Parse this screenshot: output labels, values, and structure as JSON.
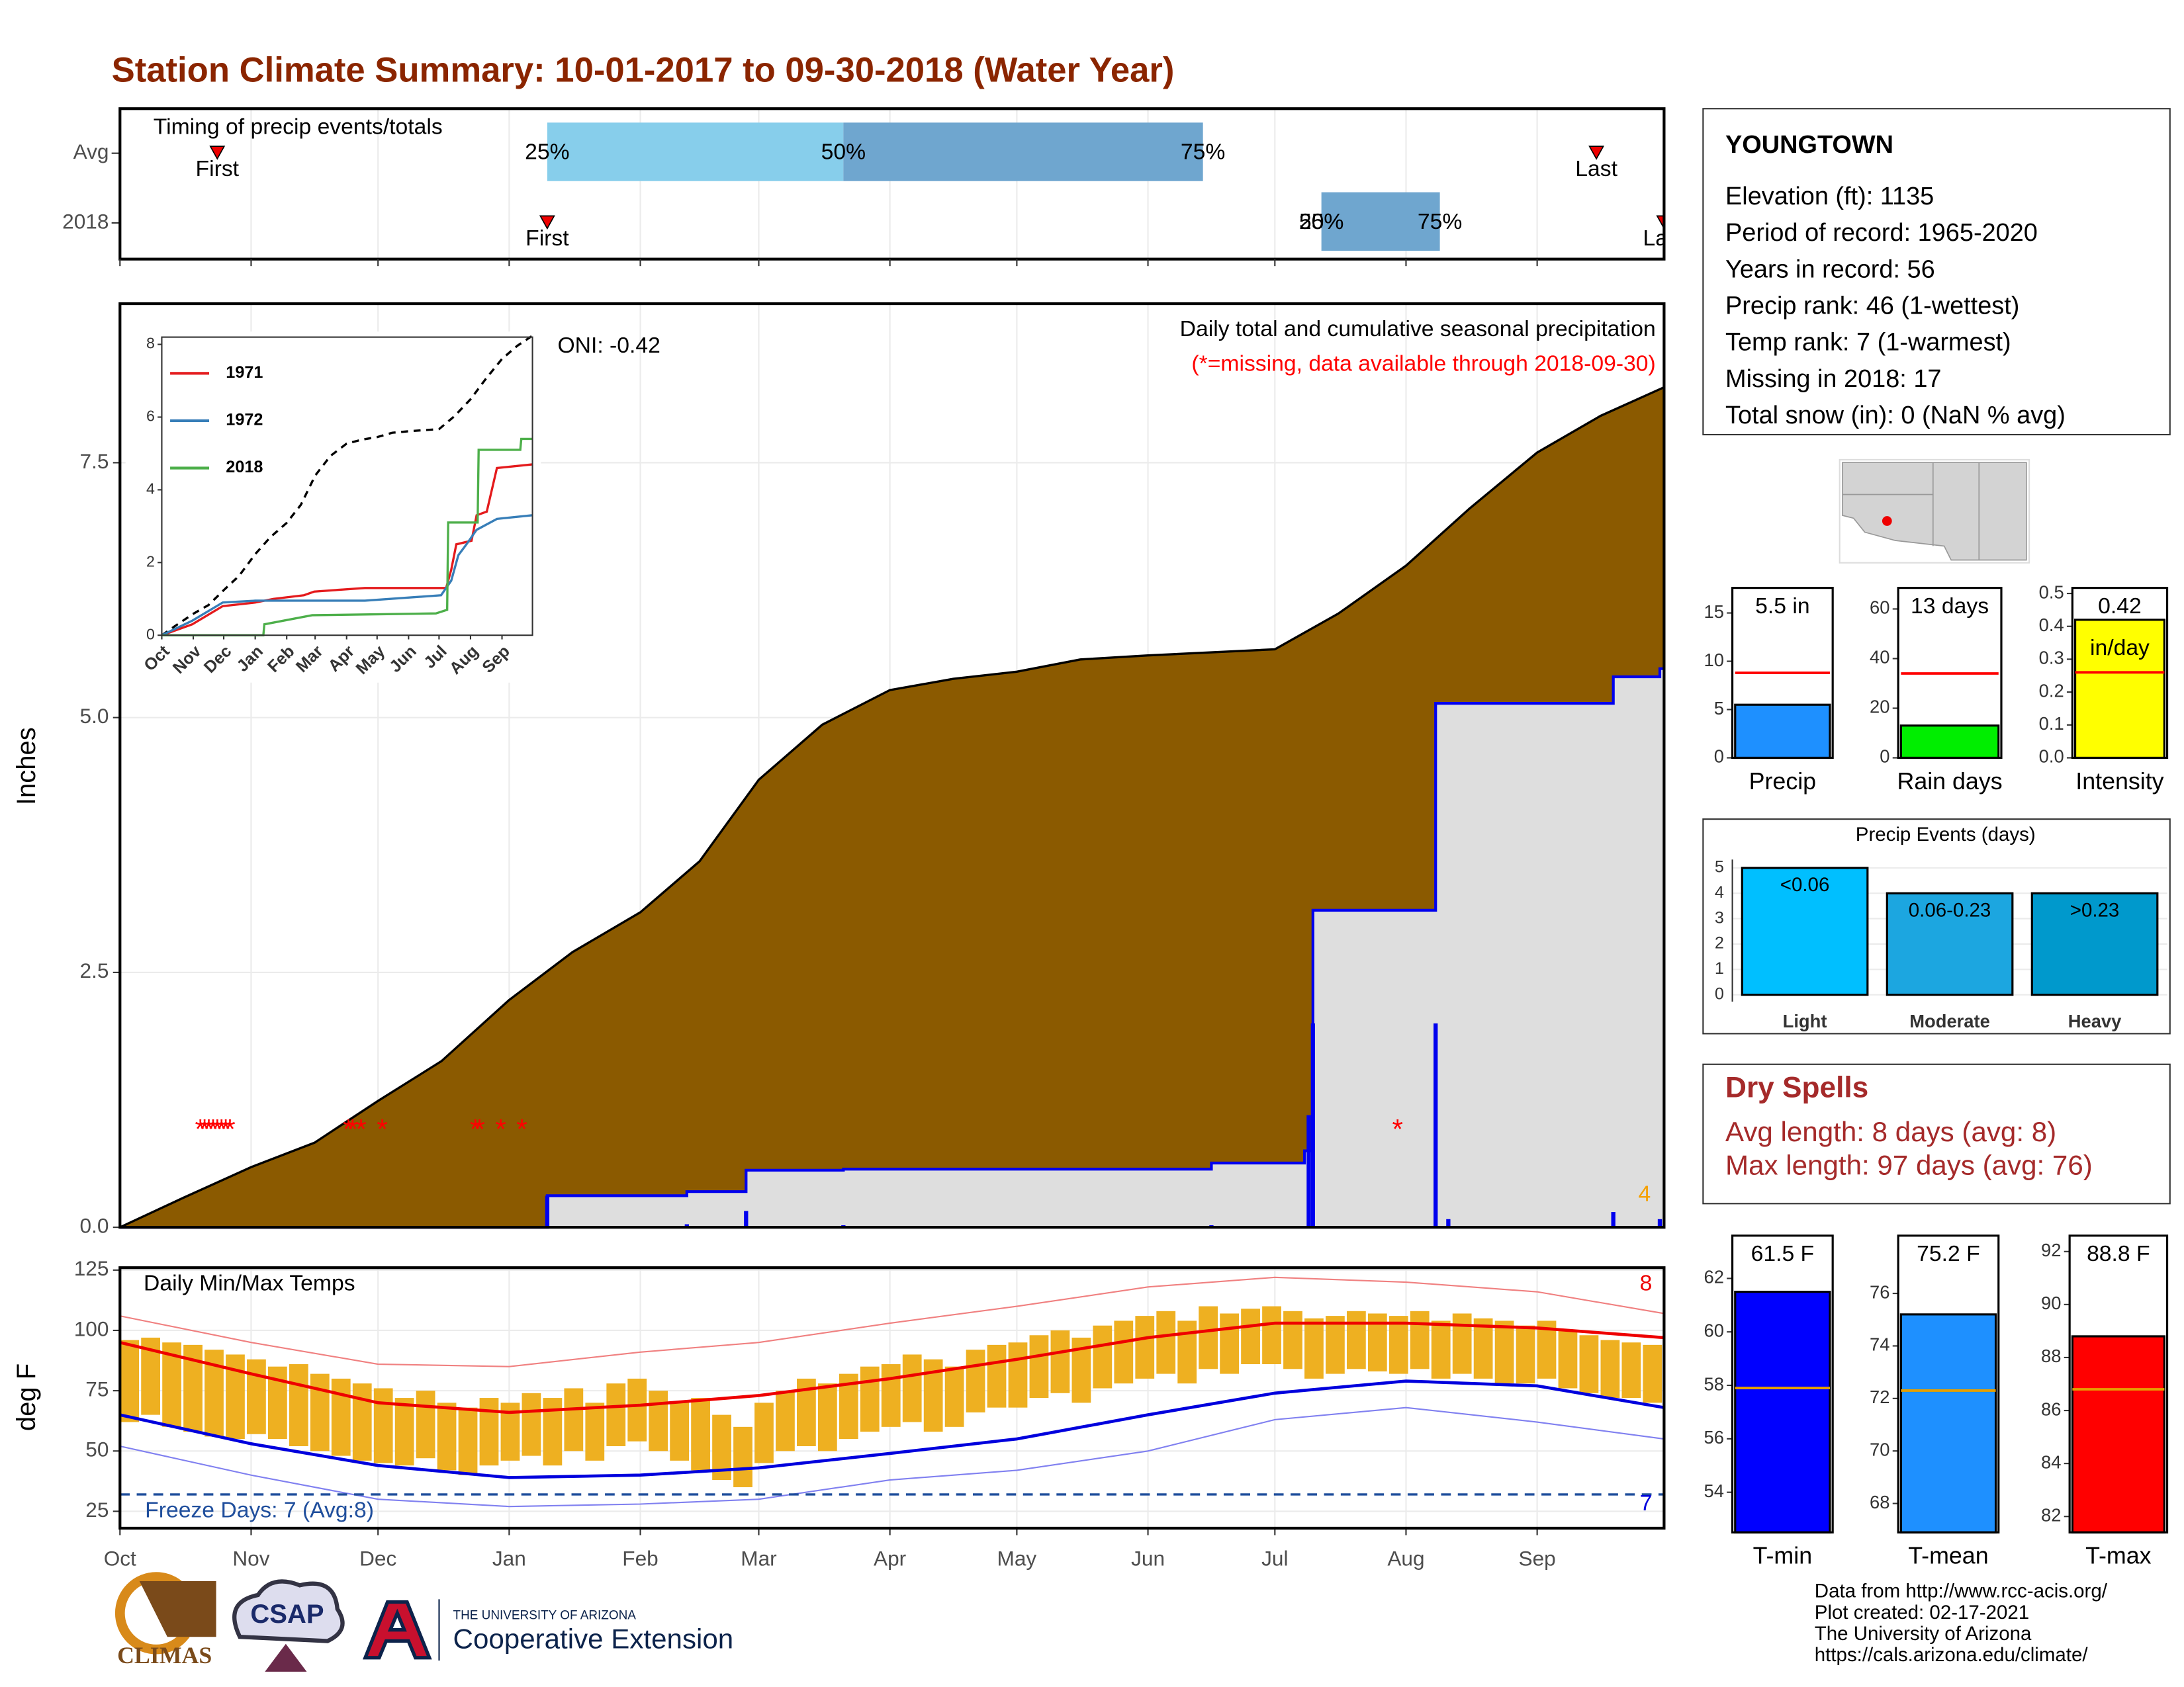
{
  "title": "Station Climate Summary: 10-01-2017 to 09-30-2018 (Water Year)",
  "chart_data": [
    {
      "type": "timing",
      "title": "Timing of precip events/totals",
      "xlim": [
        0,
        365
      ],
      "labels": [
        "First",
        "25%",
        "50%",
        "75%",
        "Last"
      ],
      "colors": [
        "#87ceeb",
        "#6fa6cf"
      ],
      "rows": [
        {
          "name": "Avg",
          "first": 23,
          "q25": 101,
          "q50": 171,
          "q75": 256,
          "last": 349
        },
        {
          "name": "2018",
          "first": 101,
          "q25": 284,
          "q50": 284,
          "q75": 312,
          "last": 365
        }
      ]
    },
    {
      "type": "cumulative",
      "ylabel": "Inches",
      "title": "Daily total and cumulative seasonal precipitation",
      "subtitle": "(*=missing, data available through 2018-09-30)",
      "oni": "ONI: -0.42",
      "xlim": [
        0,
        365
      ],
      "ylim": [
        0,
        9.06
      ],
      "yticks": [
        {
          "value": 0,
          "label": "0.0"
        },
        2.5,
        {
          "value": 5,
          "label": "5.0"
        },
        7.5
      ],
      "grid": true,
      "average": {
        "color": "#8b5a00",
        "x": [
          0,
          15,
          31,
          46,
          61,
          76,
          92,
          107,
          123,
          137,
          151,
          166,
          182,
          197,
          212,
          227,
          243,
          258,
          273,
          288,
          304,
          319,
          335,
          350,
          365
        ],
        "values": [
          0,
          0.29,
          0.59,
          0.83,
          1.24,
          1.63,
          2.23,
          2.7,
          3.09,
          3.59,
          4.39,
          4.93,
          5.27,
          5.38,
          5.45,
          5.57,
          5.61,
          5.64,
          5.67,
          6.02,
          6.49,
          7.05,
          7.6,
          7.96,
          8.24
        ]
      },
      "season": {
        "color": "#0000ee",
        "x": [
          0,
          101,
          134,
          148,
          171,
          258,
          280,
          282,
          311,
          353,
          364
        ],
        "values": [
          0,
          0.31,
          0.35,
          0.56,
          0.57,
          0.63,
          0.75,
          3.11,
          5.14,
          5.4,
          5.48
        ]
      },
      "daily": {
        "color": "#0000ee",
        "x": [
          101,
          134,
          148,
          171,
          258,
          281,
          282,
          311,
          314,
          353,
          364
        ],
        "values": [
          0.31,
          0.03,
          0.16,
          0.02,
          0.02,
          1.1,
          2.0,
          2.0,
          0.08,
          0.15,
          0.08
        ]
      },
      "missing_symbol": "*",
      "missing_color": "#ff0000",
      "missing_days": [
        19,
        20,
        21,
        22,
        23,
        24,
        25,
        26,
        54,
        55,
        57,
        62,
        84,
        85,
        90,
        95,
        302
      ],
      "corner_note": "4"
    },
    {
      "type": "line",
      "xlim": [
        0,
        365
      ],
      "ylim": [
        0,
        8.2
      ],
      "yticks": [
        0,
        2,
        4,
        6,
        8
      ],
      "xticks": [
        {
          "value": 0,
          "label": "Oct"
        },
        {
          "value": 31,
          "label": "Nov"
        },
        {
          "value": 61,
          "label": "Dec"
        },
        {
          "value": 92,
          "label": "Jan"
        },
        {
          "value": 123,
          "label": "Feb"
        },
        {
          "value": 151,
          "label": "Mar"
        },
        {
          "value": 182,
          "label": "Apr"
        },
        {
          "value": 212,
          "label": "May"
        },
        {
          "value": 243,
          "label": "Jun"
        },
        {
          "value": 273,
          "label": "Jul"
        },
        {
          "value": 304,
          "label": "Aug"
        },
        {
          "value": 335,
          "label": "Sep"
        }
      ],
      "series": [
        {
          "name": "1971",
          "color": "#e41a1c",
          "x": [
            0,
            30,
            60,
            92,
            110,
            140,
            150,
            200,
            280,
            285,
            290,
            305,
            310,
            320,
            330,
            365
          ],
          "values": [
            0,
            0.3,
            0.8,
            0.9,
            1.0,
            1.1,
            1.2,
            1.3,
            1.3,
            1.8,
            2.5,
            2.6,
            3.3,
            3.4,
            4.6,
            4.7
          ]
        },
        {
          "name": "1972",
          "color": "#377eb8",
          "x": [
            0,
            30,
            60,
            92,
            200,
            275,
            285,
            292,
            300,
            310,
            330,
            365
          ],
          "values": [
            0,
            0.4,
            0.9,
            0.95,
            0.95,
            1.1,
            1.5,
            2.2,
            2.5,
            2.9,
            3.2,
            3.3
          ]
        },
        {
          "name": "2018",
          "color": "#4daf4a",
          "x": [
            0,
            100,
            101,
            148,
            270,
            281,
            282,
            311,
            312,
            353,
            354,
            365
          ],
          "values": [
            0,
            0,
            0.3,
            0.55,
            0.6,
            0.7,
            3.1,
            3.1,
            5.1,
            5.1,
            5.4,
            5.4
          ]
        }
      ]
    },
    {
      "type": "temps",
      "title": "Daily Min/Max Temps",
      "ylabel": "deg F",
      "freeze_text": "Freeze Days: 7 (Avg:8)",
      "note_high": "8",
      "note_low": "7",
      "freeze_line": 32,
      "xlim": [
        0,
        365
      ],
      "ylim": [
        18,
        126
      ],
      "yticks": [
        25,
        50,
        75,
        100,
        125
      ],
      "xticks": [
        {
          "value": 0,
          "label": "Oct"
        },
        {
          "value": 31,
          "label": "Nov"
        },
        {
          "value": 61,
          "label": "Dec"
        },
        {
          "value": 92,
          "label": "Jan"
        },
        {
          "value": 123,
          "label": "Feb"
        },
        {
          "value": 151,
          "label": "Mar"
        },
        {
          "value": 182,
          "label": "Apr"
        },
        {
          "value": 212,
          "label": "May"
        },
        {
          "value": 243,
          "label": "Jun"
        },
        {
          "value": 273,
          "label": "Jul"
        },
        {
          "value": 304,
          "label": "Aug"
        },
        {
          "value": 335,
          "label": "Sep"
        }
      ],
      "bar_color": "#eeb021",
      "x": [
        0,
        5,
        10,
        15,
        20,
        25,
        30,
        35,
        40,
        45,
        50,
        55,
        60,
        65,
        70,
        75,
        80,
        85,
        90,
        95,
        100,
        105,
        110,
        115,
        120,
        125,
        130,
        135,
        140,
        145,
        150,
        155,
        160,
        165,
        170,
        175,
        180,
        185,
        190,
        195,
        200,
        205,
        210,
        215,
        220,
        225,
        230,
        235,
        240,
        245,
        250,
        255,
        260,
        265,
        270,
        275,
        280,
        285,
        290,
        295,
        300,
        305,
        310,
        315,
        320,
        325,
        330,
        335,
        340,
        345,
        350,
        355,
        360
      ],
      "max": [
        96,
        97,
        95,
        94,
        92,
        90,
        88,
        85,
        86,
        82,
        80,
        78,
        76,
        72,
        75,
        70,
        68,
        72,
        70,
        74,
        72,
        76,
        70,
        78,
        80,
        75,
        70,
        72,
        65,
        60,
        70,
        75,
        80,
        78,
        82,
        85,
        86,
        90,
        88,
        85,
        92,
        94,
        95,
        98,
        100,
        97,
        102,
        104,
        106,
        108,
        104,
        110,
        107,
        109,
        110,
        108,
        105,
        106,
        108,
        107,
        106,
        108,
        104,
        107,
        105,
        104,
        102,
        104,
        100,
        98,
        96,
        95,
        94
      ],
      "min": [
        62,
        65,
        60,
        58,
        56,
        55,
        57,
        55,
        52,
        50,
        48,
        46,
        45,
        44,
        47,
        42,
        40,
        44,
        46,
        48,
        44,
        50,
        46,
        52,
        54,
        50,
        46,
        42,
        38,
        35,
        45,
        50,
        52,
        50,
        55,
        58,
        60,
        62,
        58,
        60,
        66,
        68,
        68,
        72,
        74,
        70,
        76,
        78,
        80,
        82,
        78,
        84,
        82,
        86,
        86,
        84,
        80,
        82,
        84,
        83,
        82,
        84,
        80,
        82,
        80,
        78,
        78,
        80,
        76,
        74,
        72,
        72,
        70
      ],
      "normals_x": [
        0,
        31,
        61,
        92,
        123,
        151,
        182,
        212,
        243,
        273,
        304,
        335,
        365
      ],
      "normal_max": {
        "color": "#ee0000",
        "values": [
          95,
          82,
          70,
          66,
          69,
          73,
          80,
          88,
          97,
          103,
          103,
          101,
          97
        ]
      },
      "normal_min": {
        "color": "#0000dd",
        "values": [
          65,
          53,
          44,
          39,
          40,
          43,
          49,
          55,
          65,
          74,
          79,
          77,
          68
        ]
      },
      "record_max": {
        "color": "#f08080",
        "values": [
          106,
          95,
          86,
          85,
          91,
          95,
          103,
          110,
          118,
          122,
          120,
          116,
          107
        ]
      },
      "record_min": {
        "color": "#8080f0",
        "values": [
          52,
          40,
          30,
          27,
          28,
          30,
          38,
          42,
          50,
          63,
          68,
          62,
          55
        ]
      }
    },
    {
      "type": "summary-bar",
      "label": "Precip",
      "value": 5.5,
      "value_label": "5.5 in",
      "avg": 8.8,
      "avg_color": "#ff0000",
      "color": "#1e90ff",
      "ylim": [
        0,
        17.6
      ],
      "yticks": [
        0,
        5,
        10,
        15
      ]
    },
    {
      "type": "summary-bar",
      "label": "Rain days",
      "value": 13,
      "value_label": "13 days",
      "avg": 34,
      "avg_color": "#ff0000",
      "color": "#00ee00",
      "ylim": [
        0,
        68.5
      ],
      "yticks": [
        0,
        20,
        40,
        60
      ]
    },
    {
      "type": "summary-bar",
      "label": "Intensity",
      "value": 0.42,
      "value_label": "0.42",
      "unit": "in/day",
      "avg": 0.26,
      "avg_color": "#ff0000",
      "color": "#ffff00",
      "ylim": [
        0,
        0.517
      ],
      "yticks": [
        {
          "value": 0,
          "label": "0.0"
        },
        0.1,
        0.2,
        0.3,
        0.4,
        0.5
      ]
    },
    {
      "type": "events",
      "title": "Precip Events (days)",
      "categories": [
        "Light",
        "Moderate",
        "Heavy"
      ],
      "bin_labels": [
        "<0.06",
        "0.06-0.23",
        ">0.23"
      ],
      "values": [
        5,
        4,
        4
      ],
      "colors": [
        "#00bfff",
        "#1ca6e0",
        "#0099cc"
      ],
      "ylim": [
        -0.27,
        5.33
      ],
      "yticks": [
        0,
        1,
        2,
        3,
        4,
        5
      ],
      "grid": true
    },
    {
      "type": "summary-bar",
      "label": "T-min",
      "value": 61.5,
      "value_label": "61.5 F",
      "avg": 57.9,
      "avg_color": "#e69f00",
      "color": "#0000ff",
      "ylim": [
        52.5,
        63.6
      ],
      "yticks": [
        54,
        56,
        58,
        60,
        62
      ]
    },
    {
      "type": "summary-bar",
      "label": "T-mean",
      "value": 75.2,
      "value_label": "75.2 F",
      "avg": 72.3,
      "avg_color": "#e69f00",
      "color": "#1e90ff",
      "ylim": [
        66.9,
        78.2
      ],
      "yticks": [
        68,
        70,
        72,
        74,
        76
      ]
    },
    {
      "type": "summary-bar",
      "label": "T-max",
      "value": 88.8,
      "value_label": "88.8 F",
      "avg": 86.8,
      "avg_color": "#e69f00",
      "color": "#ff0000",
      "ylim": [
        81.4,
        92.6
      ],
      "yticks": [
        82,
        84,
        86,
        88,
        90,
        92
      ]
    }
  ],
  "info": {
    "station": "YOUNGTOWN",
    "lines": [
      "Elevation (ft): 1135",
      "Period of record: 1965-2020",
      "Years in record: 56",
      "Precip rank: 46 (1-wettest)",
      "Temp rank: 7 (1-warmest)",
      "Missing in 2018: 17",
      "Total snow (in): 0 (NaN % avg)"
    ]
  },
  "dry_spells": {
    "title": "Dry Spells",
    "lines": [
      "Avg length: 8 days (avg: 8)",
      "Max length: 97 days (avg: 76)"
    ]
  },
  "footer": [
    "Data from http://www.rcc-acis.org/",
    "Plot created: 02-17-2021",
    "The University of Arizona",
    "https://cals.arizona.edu/climate/"
  ],
  "logos": {
    "climas": "CLIMAS",
    "csap": "CSAP",
    "ua_small": "THE UNIVERSITY OF ARIZONA",
    "ua_big": "Cooperative Extension"
  }
}
